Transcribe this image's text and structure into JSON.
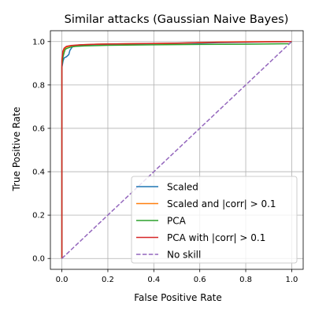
{
  "chart_data": {
    "type": "line",
    "title": "Similar attacks (Gaussian Naive Bayes)",
    "xlabel": "False Positive Rate",
    "ylabel": "True Positive Rate",
    "xlim": [
      -0.05,
      1.05
    ],
    "ylim": [
      -0.05,
      1.05
    ],
    "xticks": [
      0.0,
      0.2,
      0.4,
      0.6,
      0.8,
      1.0
    ],
    "yticks": [
      0.0,
      0.2,
      0.4,
      0.6,
      0.8,
      1.0
    ],
    "xtick_labels": [
      "0.0",
      "0.2",
      "0.4",
      "0.6",
      "0.8",
      "1.0"
    ],
    "ytick_labels": [
      "0.0",
      "0.2",
      "0.4",
      "0.6",
      "0.8",
      "1.0"
    ],
    "grid": true,
    "legend_position": "lower right",
    "series": [
      {
        "name": "Scaled",
        "color": "#1f77b4",
        "style": "solid",
        "points": [
          [
            0,
            0
          ],
          [
            0,
            0.88
          ],
          [
            0.005,
            0.91
          ],
          [
            0.01,
            0.925
          ],
          [
            0.02,
            0.93
          ],
          [
            0.03,
            0.94
          ],
          [
            0.035,
            0.96
          ],
          [
            0.045,
            0.975
          ],
          [
            0.06,
            0.98
          ],
          [
            0.1,
            0.985
          ],
          [
            0.2,
            0.988
          ],
          [
            0.4,
            0.99
          ],
          [
            0.6,
            0.993
          ],
          [
            0.68,
            0.995
          ],
          [
            0.8,
            0.997
          ],
          [
            1.0,
            1.0
          ]
        ]
      },
      {
        "name": "Scaled and |corr| > 0.1",
        "color": "#ff7f0e",
        "style": "solid",
        "points": [
          [
            0,
            0
          ],
          [
            0,
            0.92
          ],
          [
            0.005,
            0.95
          ],
          [
            0.01,
            0.965
          ],
          [
            0.02,
            0.975
          ],
          [
            0.04,
            0.98
          ],
          [
            0.08,
            0.985
          ],
          [
            0.15,
            0.988
          ],
          [
            0.3,
            0.99
          ],
          [
            0.5,
            0.992
          ],
          [
            0.68,
            0.998
          ],
          [
            0.8,
            0.999
          ],
          [
            1.0,
            1.0
          ]
        ]
      },
      {
        "name": "PCA",
        "color": "#2ca02c",
        "style": "solid",
        "points": [
          [
            0,
            0
          ],
          [
            0,
            0.89
          ],
          [
            0.005,
            0.93
          ],
          [
            0.01,
            0.95
          ],
          [
            0.015,
            0.965
          ],
          [
            0.025,
            0.97
          ],
          [
            0.04,
            0.975
          ],
          [
            0.06,
            0.978
          ],
          [
            0.1,
            0.98
          ],
          [
            0.2,
            0.983
          ],
          [
            0.4,
            0.985
          ],
          [
            0.6,
            0.987
          ],
          [
            0.8,
            0.988
          ],
          [
            0.99,
            0.99
          ],
          [
            1.0,
            1.0
          ]
        ]
      },
      {
        "name": "PCA with |corr| > 0.1",
        "color": "#d62728",
        "style": "solid",
        "points": [
          [
            0,
            0
          ],
          [
            0,
            0.91
          ],
          [
            0.004,
            0.955
          ],
          [
            0.01,
            0.97
          ],
          [
            0.02,
            0.978
          ],
          [
            0.04,
            0.982
          ],
          [
            0.08,
            0.985
          ],
          [
            0.15,
            0.988
          ],
          [
            0.3,
            0.99
          ],
          [
            0.5,
            0.993
          ],
          [
            0.68,
            0.997
          ],
          [
            0.8,
            0.998
          ],
          [
            1.0,
            1.0
          ]
        ]
      },
      {
        "name": "No skill",
        "color": "#9467bd",
        "style": "dashed",
        "points": [
          [
            0,
            0
          ],
          [
            1,
            1
          ]
        ]
      }
    ]
  }
}
